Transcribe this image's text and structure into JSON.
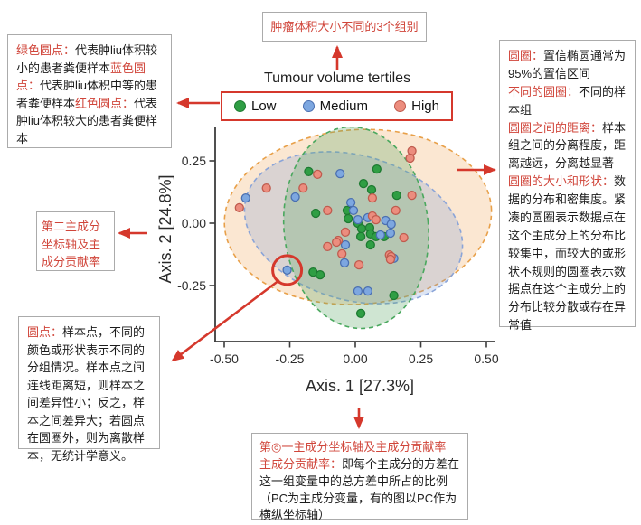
{
  "colors": {
    "annotation_red": "#d5382c",
    "label_red": "#d0453a",
    "box_border": "#ababab",
    "axis": "#3c3c3c"
  },
  "annotations": {
    "top_box": {
      "text": "肿瘤体积大小不同的3个组别"
    },
    "left_top_box": {
      "items": [
        {
          "label": "绿色圆点：",
          "text": "代表肿liu体积较小的患者粪便样本"
        },
        {
          "label": "蓝色圆点：",
          "text": "代表肿liu体积中等的患者粪便样本"
        },
        {
          "label": "红色圆点：",
          "text": "代表肿liu体积较大的患者粪便样本"
        }
      ]
    },
    "right_box": {
      "items": [
        {
          "label": "圆圈：",
          "text": "置信椭圆通常为95%的置信区间"
        },
        {
          "label": "不同的圆圈：",
          "text": "不同的样本组"
        },
        {
          "label": "圆圈之间的距离：",
          "text": "样本组之间的分离程度，距离越远，分离越显著"
        },
        {
          "label": "圆圈的大小和形状：",
          "text": "数据的分布和密集度。紧凑的圆圈表示数据点在这个主成分上的分布比较集中，而较大的或形状不规则的圆圈表示数据点在这个主成分上的分布比较分散或存在异常值"
        }
      ]
    },
    "left_middle_box": {
      "text": "第二主成分坐标轴及主成分贡献率"
    },
    "bottom_left_box": {
      "label": "圆点：",
      "text": "样本点，不同的颜色或形状表示不同的分组情况。样本点之间连线距离短，则样本之间差异性小；反之，样本之间差异大；若圆点在圆圈外，则为离散样本，无统计学意义。"
    },
    "bottom_center_box": {
      "title": "第◎一主成分坐标轴及主成分贡献率",
      "label": "主成分贡献率：",
      "text": "即每个主成分的方差在这一组变量中的总方差中所占的比例（PC为主成分变量，有的图以PC作为横纵坐标轴）"
    }
  },
  "chart_data": {
    "type": "scatter",
    "title": "Tumour volume tertiles",
    "xlabel": "Axis. 1 [27.3%]",
    "ylabel": "Axis. 2 [24.8%]",
    "xlim": [
      -0.54,
      0.53
    ],
    "ylim": [
      -0.39,
      0.385
    ],
    "grid": false,
    "legend_position": "top",
    "x_ticks": [
      {
        "v": -0.5,
        "label": "-0.50"
      },
      {
        "v": -0.25,
        "label": "-0.25"
      },
      {
        "v": 0.0,
        "label": "0.00"
      },
      {
        "v": 0.25,
        "label": "0.25"
      },
      {
        "v": 0.5,
        "label": "0.50"
      }
    ],
    "y_ticks": [
      {
        "v": 0.25,
        "label": "0.25"
      },
      {
        "v": 0.0,
        "label": "0.00"
      },
      {
        "v": -0.25,
        "label": "-0.25"
      }
    ],
    "series": [
      {
        "name": "Low",
        "fill": "#2f9e44",
        "stroke": "#1d7a31",
        "points": [
          [
            -0.178,
            0.207
          ],
          [
            0.082,
            0.217
          ],
          [
            0.031,
            0.159
          ],
          [
            0.062,
            0.134
          ],
          [
            0.158,
            0.112
          ],
          [
            -0.151,
            0.04
          ],
          [
            -0.031,
            0.051
          ],
          [
            -0.027,
            0.018
          ],
          [
            0.01,
            0.0
          ],
          [
            0.024,
            -0.022
          ],
          [
            0.055,
            -0.018
          ],
          [
            0.021,
            -0.054
          ],
          [
            0.058,
            -0.043
          ],
          [
            0.079,
            -0.054
          ],
          [
            0.11,
            -0.054
          ],
          [
            0.058,
            -0.087
          ],
          [
            -0.161,
            -0.196
          ],
          [
            -0.134,
            -0.207
          ],
          [
            0.147,
            -0.29
          ],
          [
            0.021,
            -0.362
          ]
        ]
      },
      {
        "name": "Medium",
        "fill": "#7da7e0",
        "stroke": "#4a6fb0",
        "points": [
          [
            -0.058,
            0.199
          ],
          [
            -0.418,
            0.101
          ],
          [
            -0.229,
            0.105
          ],
          [
            -0.017,
            0.083
          ],
          [
            -0.007,
            0.051
          ],
          [
            0.01,
            0.014
          ],
          [
            0.048,
            0.022
          ],
          [
            0.116,
            0.011
          ],
          [
            0.137,
            -0.004
          ],
          [
            -0.038,
            -0.087
          ],
          [
            -0.041,
            -0.159
          ],
          [
            -0.26,
            -0.188
          ],
          [
            0.01,
            -0.272
          ],
          [
            0.048,
            -0.272
          ],
          [
            0.147,
            -0.141
          ],
          [
            0.096,
            -0.047
          ],
          [
            0.134,
            -0.04
          ]
        ]
      },
      {
        "name": "High",
        "fill": "#ec8d7e",
        "stroke": "#bf5b4e",
        "points": [
          [
            0.216,
            0.29
          ],
          [
            0.209,
            0.261
          ],
          [
            -0.144,
            0.196
          ],
          [
            -0.339,
            0.141
          ],
          [
            -0.199,
            0.141
          ],
          [
            -0.442,
            0.062
          ],
          [
            0.065,
            0.101
          ],
          [
            0.216,
            0.112
          ],
          [
            -0.106,
            0.051
          ],
          [
            0.154,
            0.051
          ],
          [
            0.065,
            0.029
          ],
          [
            0.079,
            0.014
          ],
          [
            -0.038,
            -0.036
          ],
          [
            -0.065,
            -0.069
          ],
          [
            -0.072,
            -0.076
          ],
          [
            -0.106,
            -0.094
          ],
          [
            -0.051,
            -0.123
          ],
          [
            0.185,
            -0.058
          ],
          [
            0.13,
            -0.127
          ],
          [
            0.137,
            -0.134
          ],
          [
            0.134,
            -0.145
          ],
          [
            0.014,
            -0.167
          ]
        ]
      }
    ],
    "ellipses": [
      {
        "group": "High",
        "cx": 0.01,
        "cy": 0.025,
        "rx": 0.51,
        "ry": 0.35,
        "rot": -4,
        "stroke": "#e8a049",
        "fill": "rgba(242,166,90,0.27)"
      },
      {
        "group": "Medium",
        "cx": -0.007,
        "cy": -0.018,
        "rx": 0.425,
        "ry": 0.29,
        "rot": 16,
        "stroke": "#8aa4d8",
        "fill": "rgba(118,150,210,0.25)"
      },
      {
        "group": "Low",
        "cx": 0.003,
        "cy": -0.018,
        "rx": 0.275,
        "ry": 0.405,
        "rot": -6,
        "stroke": "#4aa85e",
        "fill": "rgba(95,170,105,0.30)"
      }
    ],
    "highlight_circle": {
      "x": -0.26,
      "y": -0.188,
      "radius_px": 16
    }
  },
  "arrows": [
    {
      "name": "legend-title-to-top-box",
      "from": [
        373,
        77
      ],
      "to": [
        373,
        52
      ]
    },
    {
      "name": "legend-to-left-top-box",
      "from": [
        243,
        114
      ],
      "to": [
        197,
        114
      ]
    },
    {
      "name": "plot-to-right-box",
      "from": [
        506,
        188
      ],
      "to": [
        547,
        188
      ]
    },
    {
      "name": "y-axis-to-left-middle-box",
      "from": [
        163,
        258
      ],
      "to": [
        132,
        258
      ]
    },
    {
      "name": "highlight-circle-to-bottom-left-box",
      "from": [
        309,
        310
      ],
      "to": [
        191,
        399
      ]
    },
    {
      "name": "x-axis-to-bottom-center-box",
      "from": [
        397,
        452
      ],
      "to": [
        397,
        473
      ]
    }
  ]
}
